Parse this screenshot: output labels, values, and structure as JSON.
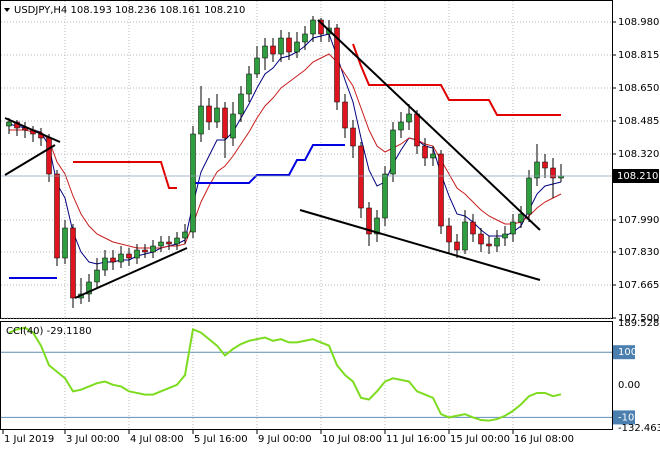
{
  "chart_data": [
    {
      "type": "candlestick",
      "info": "USDJPY,H4  108.193 108.236 108.161 108.210",
      "categories": [
        "1 Jul 2019",
        null,
        null,
        null,
        null,
        null,
        null,
        "3 Jul 00:00",
        null,
        null,
        null,
        null,
        null,
        null,
        null,
        "4 Jul 08:00",
        null,
        null,
        null,
        null,
        null,
        null,
        null,
        "5 Jul 16:00",
        null,
        null,
        null,
        null,
        null,
        null,
        null,
        "9 Jul 00:00",
        null,
        null,
        null,
        null,
        null,
        null,
        null,
        "10 Jul 08:00",
        null,
        null,
        null,
        null,
        null,
        null,
        null,
        "11 Jul 16:00",
        null,
        null,
        null,
        null,
        null,
        null,
        null,
        "15 Jul 00:00",
        null,
        null,
        null,
        null,
        null,
        null,
        null,
        "16 Jul 08:00",
        null,
        null,
        null,
        null,
        null,
        null
      ],
      "open": [
        108.46,
        108.48,
        108.45,
        108.44,
        108.42,
        108.4,
        108.22,
        107.8,
        107.95,
        107.6,
        107.62,
        107.68,
        107.74,
        107.8,
        107.78,
        107.82,
        107.8,
        107.84,
        107.83,
        107.86,
        107.88,
        107.87,
        107.9,
        107.93,
        108.42,
        108.56,
        108.48,
        108.55,
        108.4,
        108.52,
        108.62,
        108.72,
        108.8,
        108.86,
        108.82,
        108.9,
        108.83,
        108.88,
        108.92,
        108.99,
        108.92,
        108.95,
        108.58,
        108.45,
        108.36,
        108.05,
        107.92,
        108.0,
        108.22,
        108.44,
        108.48,
        108.52,
        108.36,
        108.3,
        108.32,
        107.96,
        107.88,
        107.84,
        107.98,
        107.92,
        107.87,
        107.86,
        107.9,
        107.92,
        107.98,
        108.02,
        108.2,
        108.28,
        108.25,
        108.2
      ],
      "high": [
        108.5,
        108.49,
        108.48,
        108.46,
        108.45,
        108.42,
        108.24,
        107.99,
        107.97,
        107.7,
        107.72,
        107.8,
        107.84,
        107.84,
        107.86,
        107.85,
        107.87,
        107.87,
        107.89,
        107.91,
        107.91,
        107.93,
        107.97,
        108.46,
        108.66,
        108.6,
        108.62,
        108.58,
        108.58,
        108.66,
        108.76,
        108.86,
        108.9,
        108.9,
        108.94,
        108.93,
        108.93,
        108.96,
        109.01,
        109.0,
        108.99,
        108.97,
        108.62,
        108.49,
        108.38,
        108.08,
        108.04,
        108.26,
        108.48,
        108.53,
        108.57,
        108.54,
        108.4,
        108.36,
        108.34,
        108.0,
        107.92,
        108.04,
        108.02,
        107.95,
        107.91,
        107.94,
        107.96,
        108.02,
        108.06,
        108.24,
        108.37,
        108.32,
        108.3,
        108.27
      ],
      "low": [
        108.42,
        108.41,
        108.4,
        108.38,
        108.36,
        108.18,
        107.76,
        107.77,
        107.55,
        107.57,
        107.58,
        107.65,
        107.71,
        107.74,
        107.75,
        107.76,
        107.77,
        107.8,
        107.8,
        107.83,
        107.84,
        107.84,
        107.87,
        107.9,
        108.38,
        108.44,
        108.45,
        108.3,
        108.36,
        108.48,
        108.58,
        108.7,
        108.74,
        108.78,
        108.78,
        108.79,
        108.8,
        108.84,
        108.88,
        108.88,
        108.88,
        108.54,
        108.4,
        108.3,
        108.0,
        107.86,
        107.88,
        107.96,
        108.18,
        108.4,
        108.44,
        108.32,
        108.26,
        108.26,
        107.92,
        107.82,
        107.8,
        107.82,
        107.88,
        107.83,
        107.82,
        107.83,
        107.86,
        107.88,
        107.95,
        107.98,
        108.16,
        108.2,
        108.1,
        108.18
      ],
      "close": [
        108.48,
        108.45,
        108.44,
        108.42,
        108.4,
        108.22,
        107.8,
        107.95,
        107.6,
        107.62,
        107.68,
        107.74,
        107.8,
        107.78,
        107.82,
        107.8,
        107.84,
        107.83,
        107.86,
        107.88,
        107.87,
        107.9,
        107.93,
        108.42,
        108.56,
        108.48,
        108.55,
        108.4,
        108.52,
        108.62,
        108.72,
        108.8,
        108.86,
        108.82,
        108.9,
        108.83,
        108.88,
        108.92,
        108.99,
        108.92,
        108.95,
        108.58,
        108.45,
        108.36,
        108.05,
        107.92,
        108.0,
        108.22,
        108.44,
        108.48,
        108.52,
        108.36,
        108.3,
        108.32,
        107.96,
        107.88,
        107.84,
        107.98,
        107.92,
        107.87,
        107.86,
        107.9,
        107.92,
        107.98,
        108.02,
        108.2,
        108.28,
        108.25,
        108.2,
        108.21
      ],
      "up_color": "#2e9e3e",
      "down_color": "#e0141e",
      "series": [
        {
          "color": "#000080",
          "values": [
            108.47,
            108.46,
            108.45,
            108.44,
            108.43,
            108.36,
            108.17,
            108.1,
            107.93,
            107.83,
            107.78,
            107.77,
            107.78,
            107.78,
            107.79,
            107.79,
            107.81,
            107.82,
            107.83,
            107.85,
            107.86,
            107.87,
            107.89,
            108.07,
            108.23,
            108.31,
            108.39,
            108.39,
            108.43,
            108.5,
            108.57,
            108.65,
            108.72,
            108.75,
            108.8,
            108.81,
            108.83,
            108.86,
            108.9,
            108.91,
            108.92,
            108.81,
            108.69,
            108.58,
            108.4,
            108.24,
            108.16,
            108.18,
            108.27,
            108.34,
            108.4,
            108.39,
            108.36,
            108.35,
            108.22,
            108.11,
            108.02,
            108.01,
            107.98,
            107.94,
            107.91,
            107.91,
            107.91,
            107.93,
            107.96,
            108.04,
            108.12,
            108.16,
            108.17,
            108.18
          ]
        },
        {
          "color": "#c81e1e",
          "values": [
            108.44,
            108.44,
            108.44,
            108.43,
            108.43,
            108.39,
            108.28,
            108.22,
            108.11,
            108.02,
            107.96,
            107.92,
            107.9,
            107.88,
            107.87,
            107.86,
            107.85,
            107.85,
            107.85,
            107.85,
            107.86,
            107.86,
            107.87,
            107.97,
            108.08,
            108.16,
            108.23,
            108.26,
            108.31,
            108.37,
            108.43,
            108.5,
            108.56,
            108.6,
            108.65,
            108.68,
            108.71,
            108.74,
            108.78,
            108.8,
            108.82,
            108.78,
            108.72,
            108.66,
            108.55,
            108.44,
            108.36,
            108.33,
            108.35,
            108.37,
            108.4,
            108.39,
            108.37,
            108.36,
            108.29,
            108.22,
            108.15,
            108.12,
            108.08,
            108.04,
            108.01,
            107.99,
            107.97,
            107.97,
            107.98,
            108.01,
            108.05,
            108.08,
            108.1,
            108.12
          ]
        },
        {
          "color": "#e00000",
          "width": 2,
          "values": [
            null,
            null,
            null,
            null,
            null,
            null,
            null,
            null,
            108.28,
            108.28,
            108.28,
            108.28,
            108.28,
            108.28,
            108.28,
            108.28,
            108.28,
            108.28,
            108.28,
            108.28,
            108.15,
            108.15,
            null,
            null,
            null,
            null,
            null,
            null,
            null,
            null,
            null,
            null,
            null,
            null,
            null,
            null,
            null,
            null,
            null,
            null,
            null,
            null,
            null,
            108.87,
            108.76,
            108.665,
            108.665,
            108.665,
            108.665,
            108.665,
            108.665,
            108.665,
            108.665,
            108.665,
            108.665,
            108.59,
            108.59,
            108.59,
            108.59,
            108.59,
            108.59,
            108.515,
            108.515,
            108.515,
            108.515,
            108.515,
            108.515,
            108.515,
            108.515,
            108.515
          ]
        },
        {
          "color": "#0000e0",
          "width": 2,
          "values": [
            107.7,
            107.7,
            107.7,
            107.7,
            107.7,
            107.7,
            107.7,
            null,
            null,
            null,
            null,
            null,
            null,
            null,
            null,
            null,
            null,
            null,
            null,
            null,
            null,
            null,
            null,
            108.175,
            108.175,
            108.175,
            108.175,
            108.175,
            108.175,
            108.175,
            108.175,
            108.215,
            108.215,
            108.215,
            108.215,
            108.215,
            108.29,
            108.29,
            108.365,
            108.365,
            108.365,
            108.365,
            108.365,
            null,
            null,
            null,
            null,
            null,
            null,
            null,
            null,
            null,
            null,
            null,
            null,
            null,
            null,
            null,
            null,
            null,
            null,
            null,
            null,
            null,
            null,
            null,
            null,
            null,
            null,
            null
          ]
        }
      ],
      "last_price": {
        "value": 108.21,
        "label": "108.210"
      },
      "ylim": [
        107.5,
        109.09
      ],
      "yticks": [
        {
          "value": 108.98,
          "label": "108.980"
        },
        108.815,
        {
          "value": 108.65,
          "label": "108.650"
        },
        108.485,
        {
          "value": 108.32,
          "label": "108.320"
        },
        {
          "value": 107.99,
          "label": "107.990"
        },
        {
          "value": 107.83,
          "label": "107.830"
        },
        107.665,
        {
          "value": 107.5,
          "label": "107.500"
        }
      ],
      "grid": true
    },
    {
      "type": "line",
      "title": "CCI(40) -29.1180",
      "color": "#7ddc1f",
      "values": [
        160,
        170,
        175,
        160,
        120,
        60,
        40,
        20,
        -20,
        -15,
        -5,
        5,
        10,
        0,
        -5,
        -20,
        -25,
        -30,
        -30,
        -20,
        -10,
        0,
        30,
        170,
        160,
        140,
        120,
        90,
        110,
        125,
        135,
        140,
        145,
        135,
        140,
        130,
        130,
        135,
        140,
        130,
        120,
        60,
        30,
        10,
        -40,
        -45,
        -20,
        10,
        20,
        15,
        10,
        -20,
        -30,
        -40,
        -90,
        -100,
        -95,
        -90,
        -100,
        -108,
        -110,
        -105,
        -95,
        -80,
        -60,
        -35,
        -25,
        -25,
        -35,
        -29.118
      ],
      "levels": [
        100,
        -100
      ],
      "ylim": [
        -132.4639,
        189.528
      ],
      "yticks": [
        189.528,
        100,
        {
          "value": 0,
          "label": "0.00"
        },
        -100,
        -132.4639
      ]
    }
  ]
}
